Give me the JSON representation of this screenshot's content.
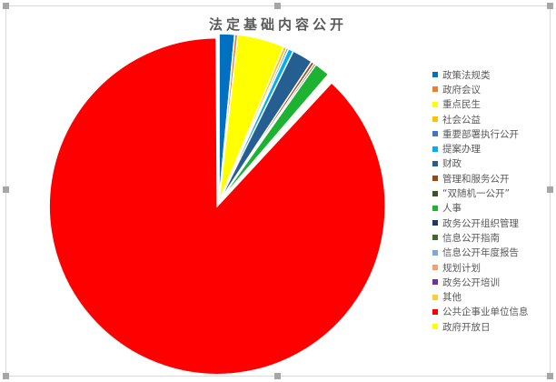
{
  "chart_data": {
    "type": "pie",
    "title": "法定基础内容公开",
    "legend_position": "right",
    "start_angle": "12 o'clock, clockwise",
    "exploded": "公共企事业单位信息",
    "slices": [
      {
        "label": "政策法规类",
        "value": 1.5,
        "color": "#0070c0"
      },
      {
        "label": "政府会议",
        "value": 0.3,
        "color": "#ed7d31"
      },
      {
        "label": "重点民生",
        "value": 4.5,
        "color": "#ffff00"
      },
      {
        "label": "社会公益",
        "value": 0.3,
        "color": "#ffc000"
      },
      {
        "label": "重要部署执行公开",
        "value": 0.2,
        "color": "#4472c4"
      },
      {
        "label": "提案办理",
        "value": 0.5,
        "color": "#00b0f0"
      },
      {
        "label": "财政",
        "value": 2.0,
        "color": "#255e91"
      },
      {
        "label": "管理和服务公开",
        "value": 0.3,
        "color": "#9e480e"
      },
      {
        "label": "“双随机一公开”",
        "value": 0.2,
        "color": "#375623"
      },
      {
        "label": "人事",
        "value": 1.5,
        "color": "#1db231"
      },
      {
        "label": "政务公开组织管理",
        "value": 0.1,
        "color": "#203864"
      },
      {
        "label": "信息公开指南",
        "value": 0.1,
        "color": "#43682b"
      },
      {
        "label": "信息公开年度报告",
        "value": 0.1,
        "color": "#7ea6d8"
      },
      {
        "label": "规划计划",
        "value": 0.1,
        "color": "#f4a172"
      },
      {
        "label": "政务公开培训",
        "value": 0.1,
        "color": "#7030a0"
      },
      {
        "label": "其他",
        "value": 0.1,
        "color": "#ffcc33"
      },
      {
        "label": "公共企事业单位信息",
        "value": 88.0,
        "color": "#ff0000"
      },
      {
        "label": "政府开放日",
        "value": 0.1,
        "color": "#ffff00"
      }
    ]
  }
}
